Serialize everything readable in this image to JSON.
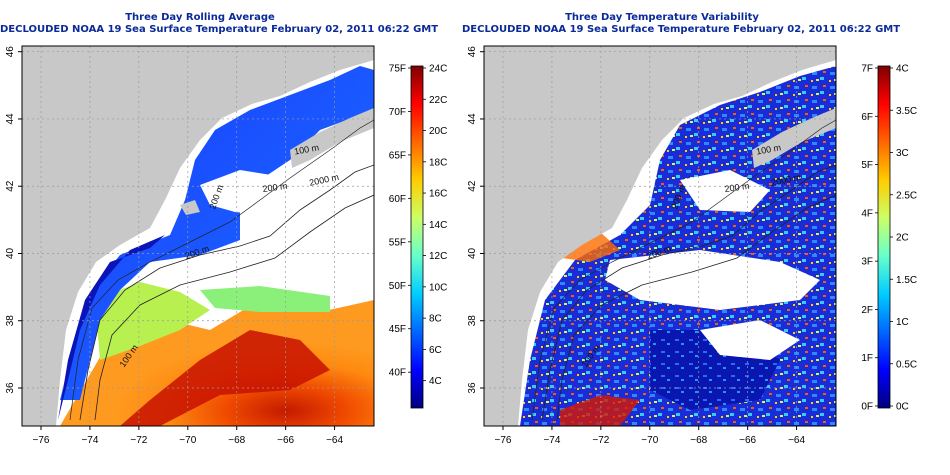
{
  "panels": [
    {
      "id": "left",
      "title_line1": "Three Day Rolling Average",
      "title_line2": "DECLOUDED NOAA 19 Sea Surface Temperature February 02, 2011 06:22 GMT",
      "colorbar": {
        "left_labels": [
          "75F",
          "70F",
          "65F",
          "60F",
          "55F",
          "50F",
          "45F",
          "40F"
        ],
        "right_labels": [
          "24C",
          "22C",
          "20C",
          "18C",
          "16C",
          "14C",
          "12C",
          "10C",
          "8C",
          "6C",
          "4C"
        ],
        "colors": [
          "#00007f",
          "#0000ff",
          "#0066ff",
          "#00ccff",
          "#66ffcc",
          "#ccff66",
          "#ffcc00",
          "#ff6600",
          "#ff0000",
          "#7f0000"
        ]
      }
    },
    {
      "id": "right",
      "title_line1": "Three Day Temperature Variability",
      "title_line2": "DECLOUDED NOAA 19 Sea Surface Temperature February 02, 2011 06:22 GMT",
      "colorbar": {
        "left_labels": [
          "7F",
          "6F",
          "5F",
          "4F",
          "3F",
          "2F",
          "1F",
          "0F"
        ],
        "right_labels": [
          "4C",
          "3.5C",
          "3C",
          "2.5C",
          "2C",
          "1.5C",
          "1C",
          "0.5C",
          "0C"
        ],
        "colors": [
          "#00007f",
          "#0000ff",
          "#0066ff",
          "#00ccff",
          "#66ffcc",
          "#ccff66",
          "#ffcc00",
          "#ff6600",
          "#ff0000",
          "#7f0000"
        ]
      }
    }
  ],
  "map": {
    "lon_ticks": [
      "-76",
      "-74",
      "-72",
      "-70",
      "-68",
      "-66",
      "-64"
    ],
    "lat_ticks": [
      "36",
      "38",
      "40",
      "42",
      "44",
      "46"
    ],
    "contour_labels": [
      "100 m",
      "200 m",
      "2000 m",
      "200 m",
      "200 m",
      "100 m"
    ],
    "land_color": "#c8c8c8",
    "cloud_color": "#ffffff"
  }
}
